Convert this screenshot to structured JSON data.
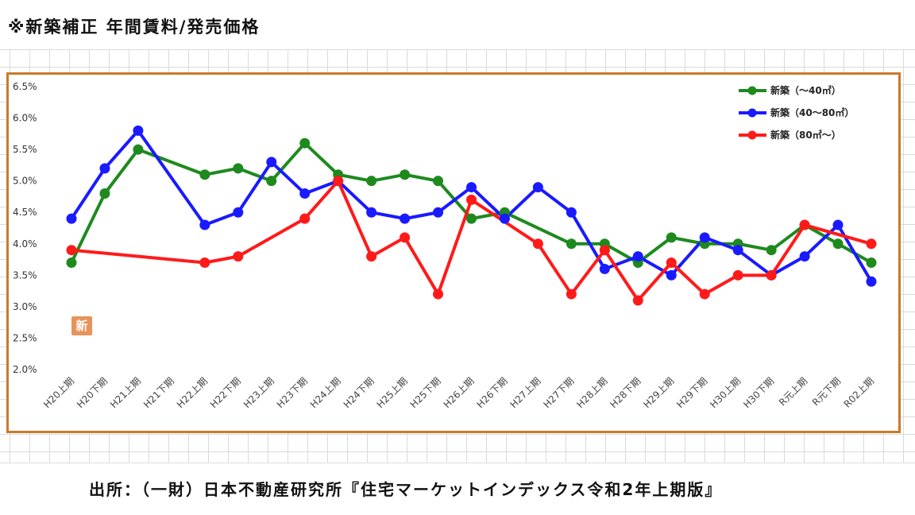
{
  "title": "※新築補正 年間賃料/発売価格",
  "source": "出所：（一財）日本不動産研究所『住宅マーケットインデックス令和2年上期版』",
  "stamp_text": "新",
  "colors": {
    "frame": "#c97a2a",
    "green": "#1e8a1e",
    "blue": "#1a1aff",
    "red": "#ff1a1a"
  },
  "chart_data": {
    "type": "line",
    "title": "",
    "xlabel": "",
    "ylabel": "",
    "ylim": [
      0.02,
      0.065
    ],
    "y_ticks": [
      "2.0%",
      "2.5%",
      "3.0%",
      "3.5%",
      "4.0%",
      "4.5%",
      "5.0%",
      "5.5%",
      "6.0%",
      "6.5%"
    ],
    "categories": [
      "H20上期",
      "H20下期",
      "H21上期",
      "H21下期",
      "H22上期",
      "H22下期",
      "H23上期",
      "H23下期",
      "H24上期",
      "H24下期",
      "H25上期",
      "H25下期",
      "H26上期",
      "H26下期",
      "H27上期",
      "H27下期",
      "H28上期",
      "H28下期",
      "H29上期",
      "H29下期",
      "H30上期",
      "H30下期",
      "R元上期",
      "R元下期",
      "R02上期"
    ],
    "legend_position": "top-right",
    "grid": false,
    "series": [
      {
        "name": "新築（～40㎡）",
        "color": "#1e8a1e",
        "values": [
          0.037,
          0.048,
          0.055,
          null,
          0.051,
          0.052,
          0.05,
          0.056,
          0.051,
          0.05,
          0.051,
          0.05,
          0.044,
          0.045,
          null,
          0.04,
          0.04,
          0.037,
          0.041,
          0.04,
          0.04,
          0.039,
          0.043,
          0.04,
          0.037
        ]
      },
      {
        "name": "新築（40～80㎡）",
        "color": "#1a1aff",
        "values": [
          0.044,
          0.052,
          0.058,
          null,
          0.043,
          0.045,
          0.053,
          0.048,
          0.05,
          0.045,
          0.044,
          0.045,
          0.049,
          0.044,
          0.049,
          0.045,
          0.036,
          0.038,
          0.035,
          0.041,
          0.039,
          0.035,
          0.038,
          0.043,
          0.034
        ]
      },
      {
        "name": "新築（80㎡～）",
        "color": "#ff1a1a",
        "values": [
          0.039,
          null,
          null,
          null,
          0.037,
          0.038,
          null,
          0.044,
          0.05,
          0.038,
          0.041,
          0.032,
          0.047,
          null,
          0.04,
          0.032,
          0.039,
          0.031,
          0.037,
          0.032,
          0.035,
          0.035,
          0.043,
          null,
          0.04
        ]
      }
    ]
  }
}
